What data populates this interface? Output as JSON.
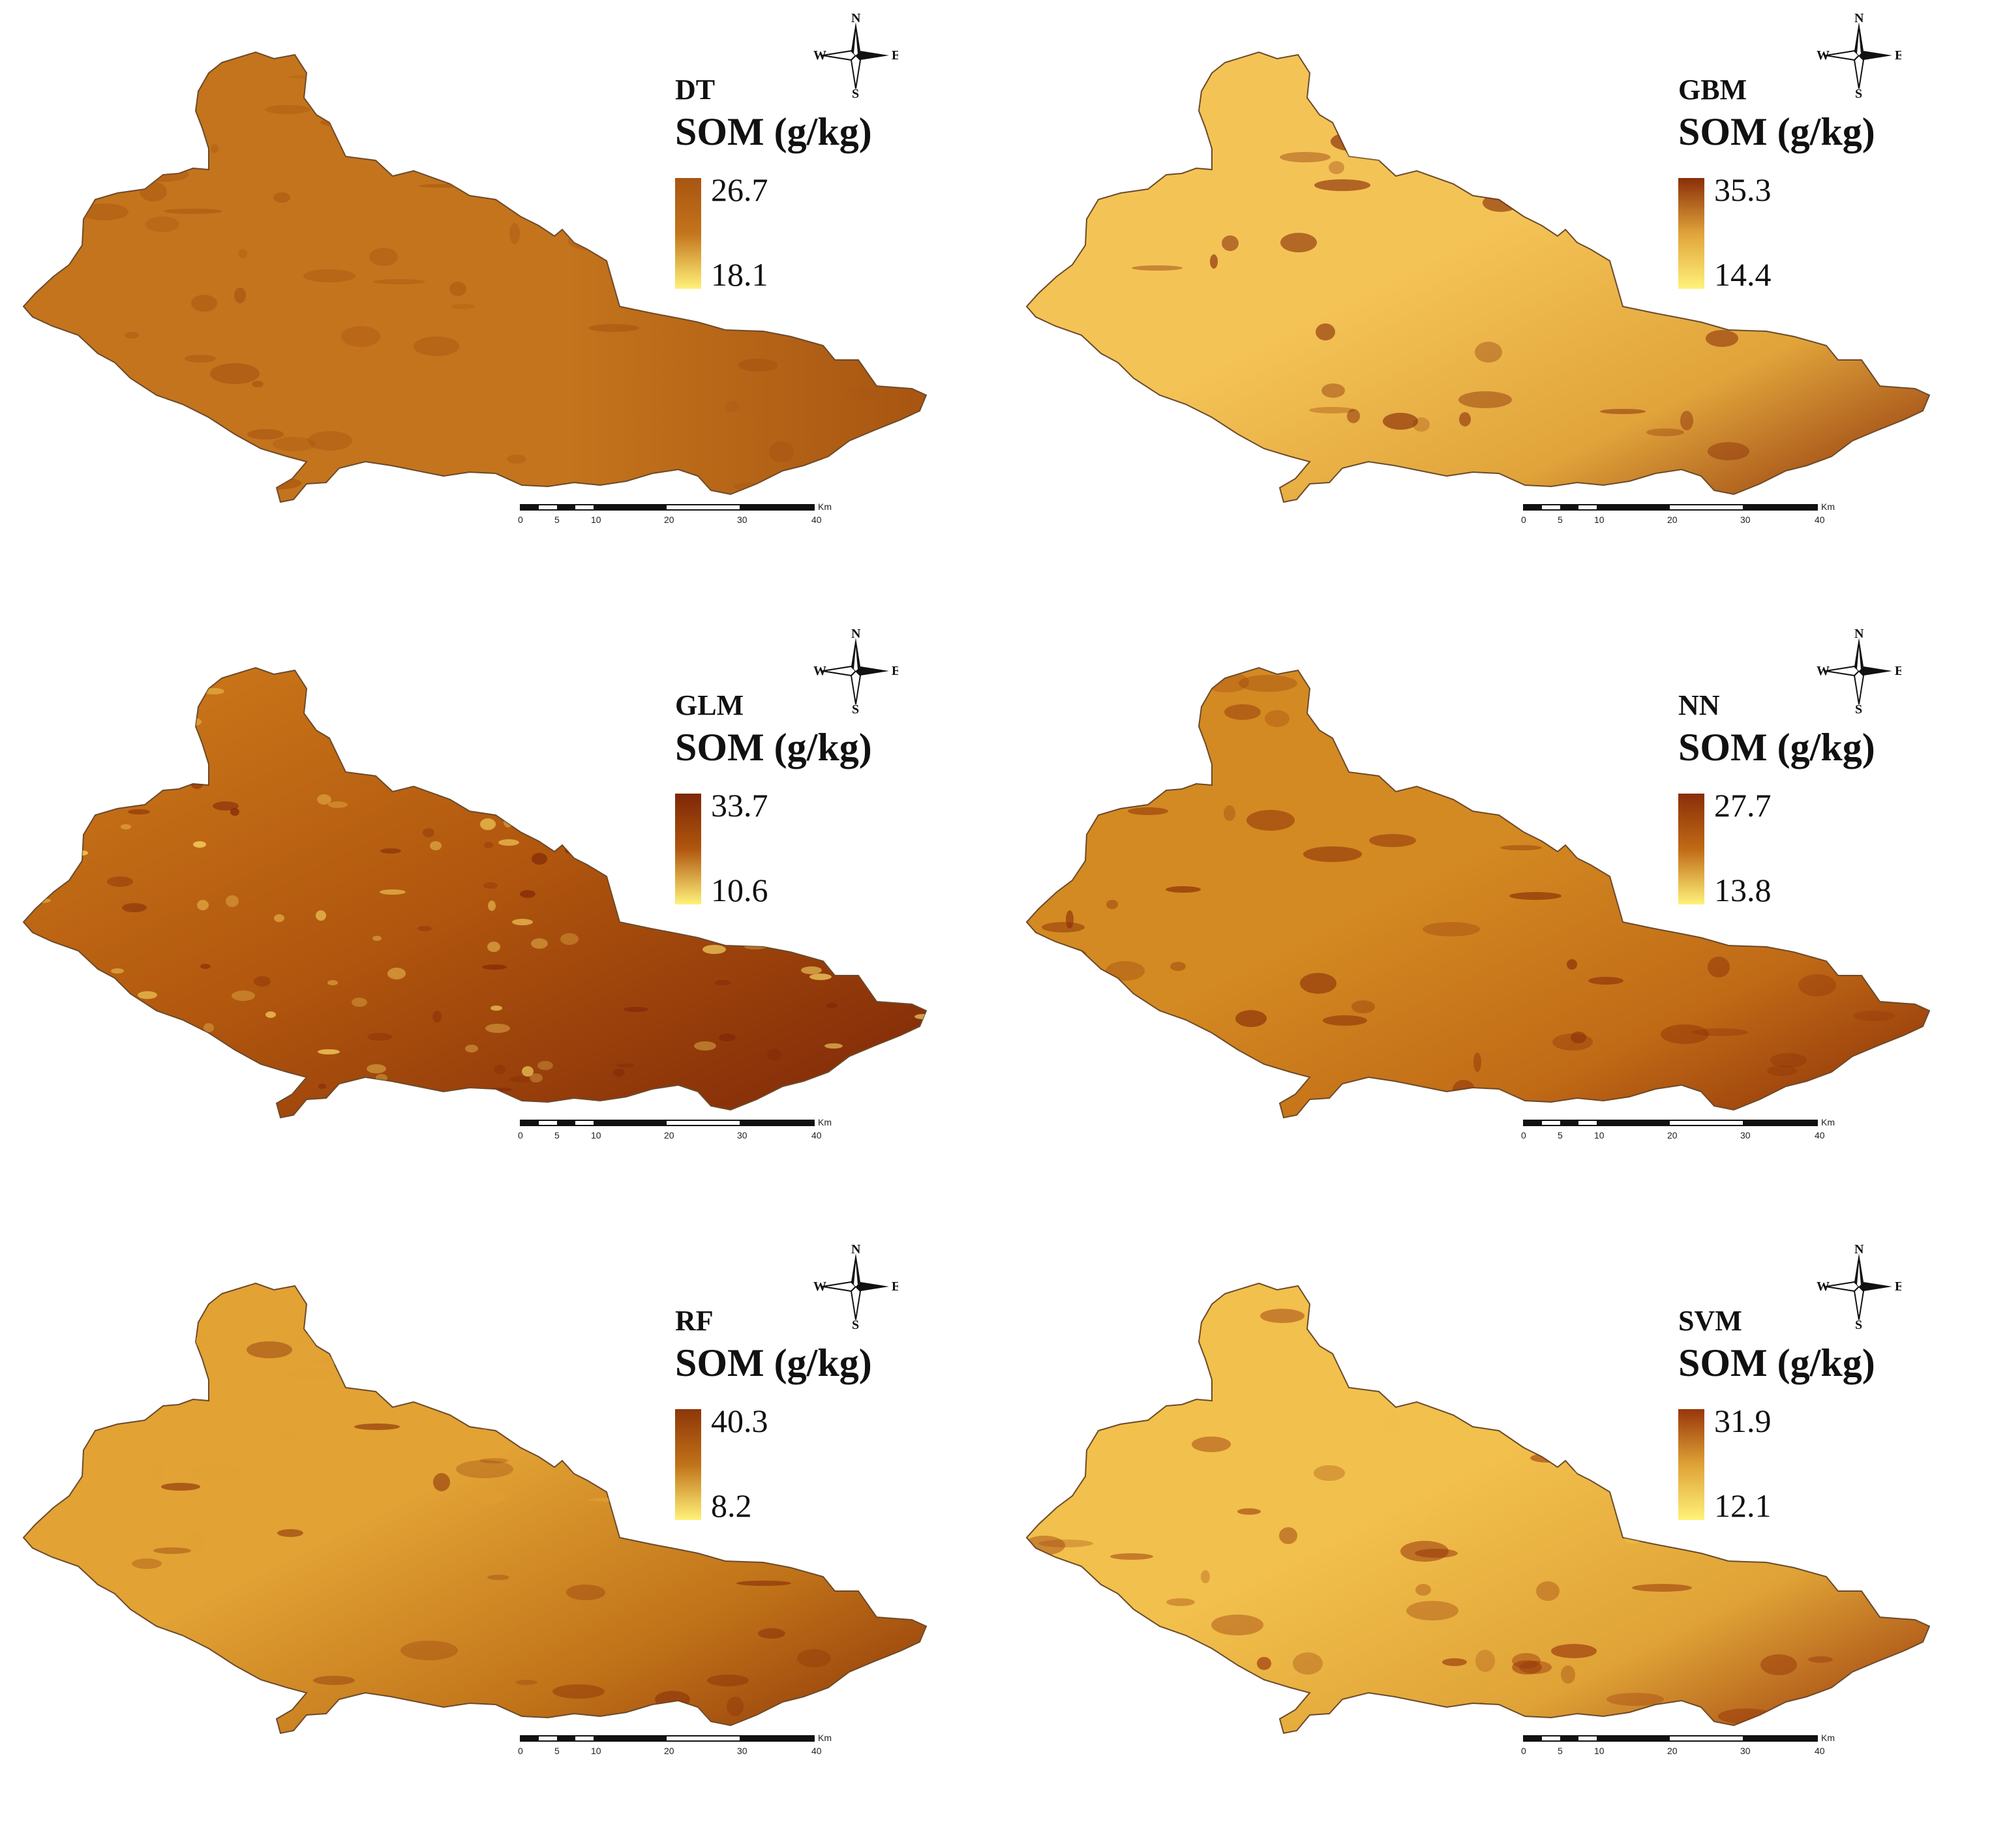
{
  "compass": {
    "n": "N",
    "s": "S",
    "e": "E",
    "w": "W"
  },
  "scalebar": {
    "ticks": [
      "0",
      "5",
      "10",
      "20",
      "30",
      "40"
    ],
    "unit": "Km"
  },
  "panels": [
    {
      "model": "DT",
      "title": "SOM (g/kg)",
      "max": "26.7",
      "min": "18.1",
      "colors": [
        "#d08a2a",
        "#c4741c",
        "#a85512"
      ],
      "pattern": "uniform"
    },
    {
      "model": "GBM",
      "title": "SOM (g/kg)",
      "max": "35.3",
      "min": "14.4",
      "colors": [
        "#f4c356",
        "#e0a33a",
        "#8a2e08"
      ],
      "pattern": "southeast"
    },
    {
      "model": "GLM",
      "title": "SOM (g/kg)",
      "max": "33.7",
      "min": "10.6",
      "colors": [
        "#d07d1c",
        "#b0560e",
        "#7e2608"
      ],
      "pattern": "speckled"
    },
    {
      "model": "NN",
      "title": "SOM (g/kg)",
      "max": "27.7",
      "min": "13.8",
      "colors": [
        "#d48a22",
        "#c06a16",
        "#8a2e08"
      ],
      "pattern": "southeast-mild"
    },
    {
      "model": "RF",
      "title": "SOM (g/kg)",
      "max": "40.3",
      "min": "8.2",
      "colors": [
        "#e2a234",
        "#c07218",
        "#8e360a"
      ],
      "pattern": "southeast"
    },
    {
      "model": "SVM",
      "title": "SOM (g/kg)",
      "max": "31.9",
      "min": "12.1",
      "colors": [
        "#f2c04c",
        "#dfa236",
        "#98360a"
      ],
      "pattern": "south"
    }
  ]
}
